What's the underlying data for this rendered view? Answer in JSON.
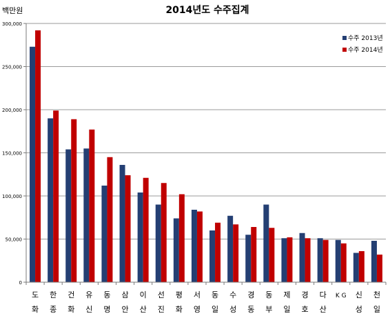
{
  "chart_data": {
    "type": "bar",
    "title": "2014년도 수주집계",
    "ylabel": "백만원",
    "xlabel": "",
    "ylim": [
      0,
      300000
    ],
    "yticks": [
      0,
      50000,
      100000,
      150000,
      200000,
      250000,
      300000
    ],
    "ytick_labels": [
      "0",
      "50,000",
      "100,000",
      "150,000",
      "200,000",
      "250,000",
      "300,000"
    ],
    "grid": true,
    "legend_position": "top-right",
    "categories": [
      [
        "도",
        "화"
      ],
      [
        "한",
        "종"
      ],
      [
        "건",
        "화"
      ],
      [
        "유",
        "신"
      ],
      [
        "동",
        "명"
      ],
      [
        "삼",
        "안"
      ],
      [
        "이",
        "산"
      ],
      [
        "선",
        "진"
      ],
      [
        "평",
        "화"
      ],
      [
        "서",
        "영"
      ],
      [
        "동",
        "일"
      ],
      [
        "수",
        "성"
      ],
      [
        "경",
        "동"
      ],
      [
        "동",
        "부"
      ],
      [
        "제",
        "일"
      ],
      [
        "경",
        "호"
      ],
      [
        "다",
        "산"
      ],
      [
        "K G",
        ""
      ],
      [
        "신",
        "성"
      ],
      [
        "천",
        "일"
      ]
    ],
    "series": [
      {
        "name": "수주 2013년",
        "color": "#243F73",
        "values": [
          273000,
          190000,
          154000,
          155000,
          112000,
          136000,
          104000,
          90000,
          74000,
          84000,
          60000,
          77000,
          55000,
          90000,
          51000,
          57000,
          51000,
          49000,
          34000,
          48000
        ]
      },
      {
        "name": "수주 2014년",
        "color": "#C00000",
        "values": [
          292000,
          199000,
          189000,
          177000,
          145000,
          124000,
          121000,
          115000,
          102000,
          82000,
          69000,
          67000,
          64000,
          63000,
          52000,
          51000,
          49000,
          45000,
          36000,
          32000
        ]
      }
    ]
  }
}
